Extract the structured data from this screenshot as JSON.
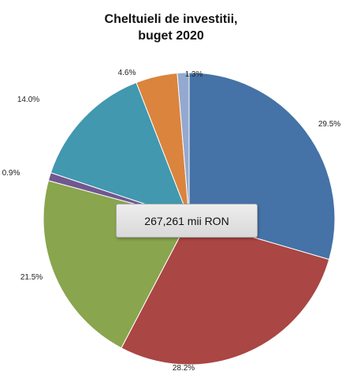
{
  "chart_data": {
    "type": "pie",
    "title_lines": [
      "Cheltuieli de investitii,",
      "buget 2020"
    ],
    "total_label": "267,261 mii RON",
    "slices": [
      {
        "label": "29.5%",
        "value": 29.5,
        "color": "#4572a7"
      },
      {
        "label": "28.2%",
        "value": 28.2,
        "color": "#aa4643"
      },
      {
        "label": "21.5%",
        "value": 21.5,
        "color": "#89a54e"
      },
      {
        "label": "0.9%",
        "value": 0.9,
        "color": "#71588f"
      },
      {
        "label": "14.0%",
        "value": 14.0,
        "color": "#4198af"
      },
      {
        "label": "4.6%",
        "value": 4.6,
        "color": "#db843d"
      },
      {
        "label": "1.3%",
        "value": 1.3,
        "color": "#93a9cf"
      }
    ]
  }
}
